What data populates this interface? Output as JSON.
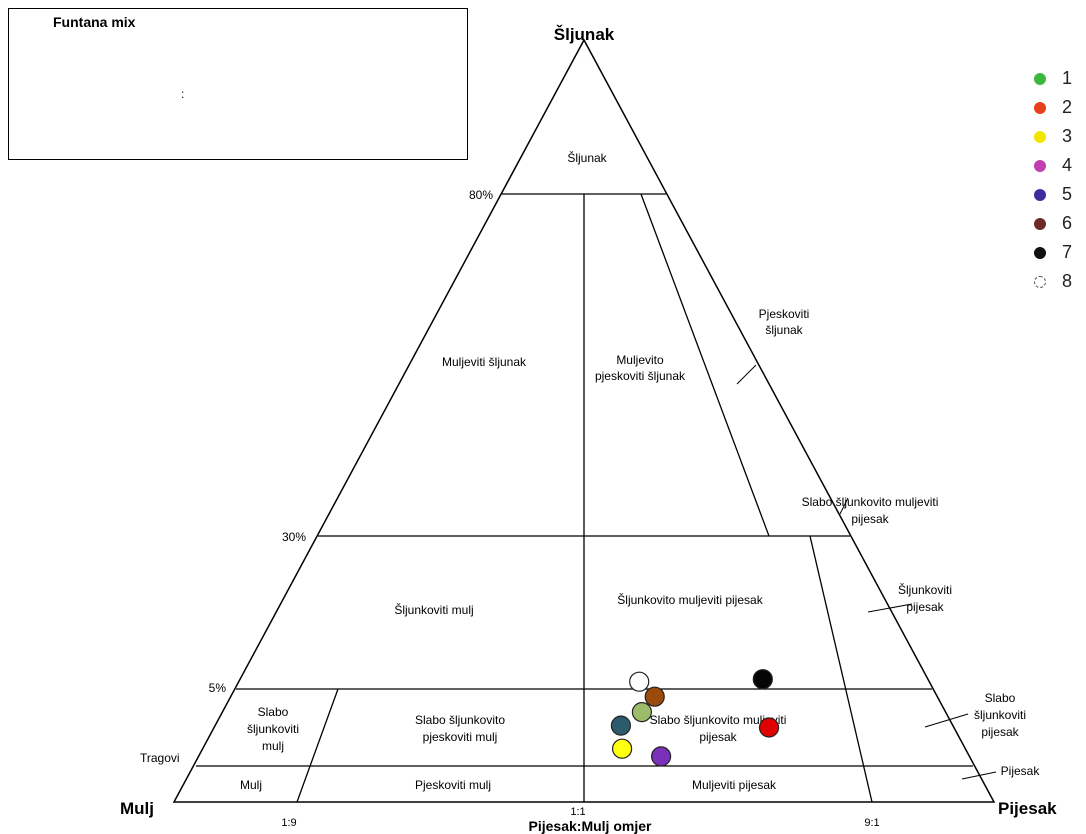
{
  "title_box": {
    "title": "Funtana mix",
    "subtitle": ":"
  },
  "apex_labels": {
    "top": "Šljunak",
    "left": "Mulj",
    "right": "Pijesak"
  },
  "left_ticks": [
    "80%",
    "30%",
    "5%",
    "Tragovi"
  ],
  "bottom_ticks": [
    "1:9",
    "1:1",
    "9:1"
  ],
  "bottom_axis_label": "Pijesak:Mulj omjer",
  "regions": {
    "sljunak": "Šljunak",
    "muljeviti_sljunak": "Muljeviti šljunak",
    "muljevito_pjeskoviti_sljunak_1": "Muljevito",
    "muljevito_pjeskoviti_sljunak_2": "pjeskoviti šljunak",
    "pjeskoviti_sljunak_1": "Pjeskoviti",
    "pjeskoviti_sljunak_2": "šljunak",
    "slabo_sljunkovito_muljeviti_pijesak_1": "Slabo šljunkovito muljeviti",
    "slabo_sljunkovito_muljeviti_pijesak_2": "pijesak",
    "sljunkoviti_mulj": "Šljunkoviti mulj",
    "sljunkovito_muljeviti_pijesak": "Šljunkovito muljeviti pijesak",
    "sljunkoviti_pijesak_1": "Šljunkoviti",
    "sljunkoviti_pijesak_2": "pijesak",
    "slabo_sljunkoviti_mulj_1": "Slabo",
    "slabo_sljunkoviti_mulj_2": "šljunkoviti",
    "slabo_sljunkoviti_mulj_3": "mulj",
    "slabo_sljunkovito_pjeskoviti_mulj_1": "Slabo šljunkovito",
    "slabo_sljunkovito_pjeskoviti_mulj_2": "pjeskoviti mulj",
    "slabo_sljunkovito_muljeviti_pijesak_low_1": "Slabo šljunkovito muljeviti",
    "slabo_sljunkovito_muljeviti_pijesak_low_2": "pijesak",
    "slabo_sljunkoviti_pijesak_1": "Slabo",
    "slabo_sljunkoviti_pijesak_2": "šljunkoviti",
    "slabo_sljunkoviti_pijesak_3": "pijesak",
    "mulj": "Mulj",
    "pjeskoviti_mulj": "Pjeskoviti mulj",
    "muljeviti_pijesak": "Muljeviti pijesak",
    "pijesak": "Pijesak"
  },
  "legend": [
    {
      "label": "1",
      "color": "#3cb83c"
    },
    {
      "label": "2",
      "color": "#e8401c"
    },
    {
      "label": "3",
      "color": "#f2e600"
    },
    {
      "label": "4",
      "color": "#c040b0"
    },
    {
      "label": "5",
      "color": "#402c9c"
    },
    {
      "label": "6",
      "color": "#6e2a24"
    },
    {
      "label": "7",
      "color": "#111111"
    },
    {
      "label": "8",
      "color": "#ffffff"
    }
  ],
  "samples": [
    {
      "id": "sample-white",
      "color": "#ffffff",
      "gravel_pct": 6.2,
      "sand_mud_ratio": 0.58
    },
    {
      "id": "sample-black",
      "color": "#050505",
      "gravel_pct": 6.6,
      "sand_mud_ratio": 0.76
    },
    {
      "id": "sample-brown",
      "color": "#9a4a0a",
      "gravel_pct": 4.6,
      "sand_mud_ratio": 0.6
    },
    {
      "id": "sample-olive",
      "color": "#9cbc6a",
      "gravel_pct": 3.8,
      "sand_mud_ratio": 0.58
    },
    {
      "id": "sample-teal",
      "color": "#2c5c6c",
      "gravel_pct": 3.1,
      "sand_mud_ratio": 0.55
    },
    {
      "id": "sample-red",
      "color": "#e00000",
      "gravel_pct": 3.0,
      "sand_mud_ratio": 0.75
    },
    {
      "id": "sample-yellow",
      "color": "#ffff10",
      "gravel_pct": 1.9,
      "sand_mud_ratio": 0.55
    },
    {
      "id": "sample-purple",
      "color": "#7a30b8",
      "gravel_pct": 1.5,
      "sand_mud_ratio": 0.6
    }
  ]
}
